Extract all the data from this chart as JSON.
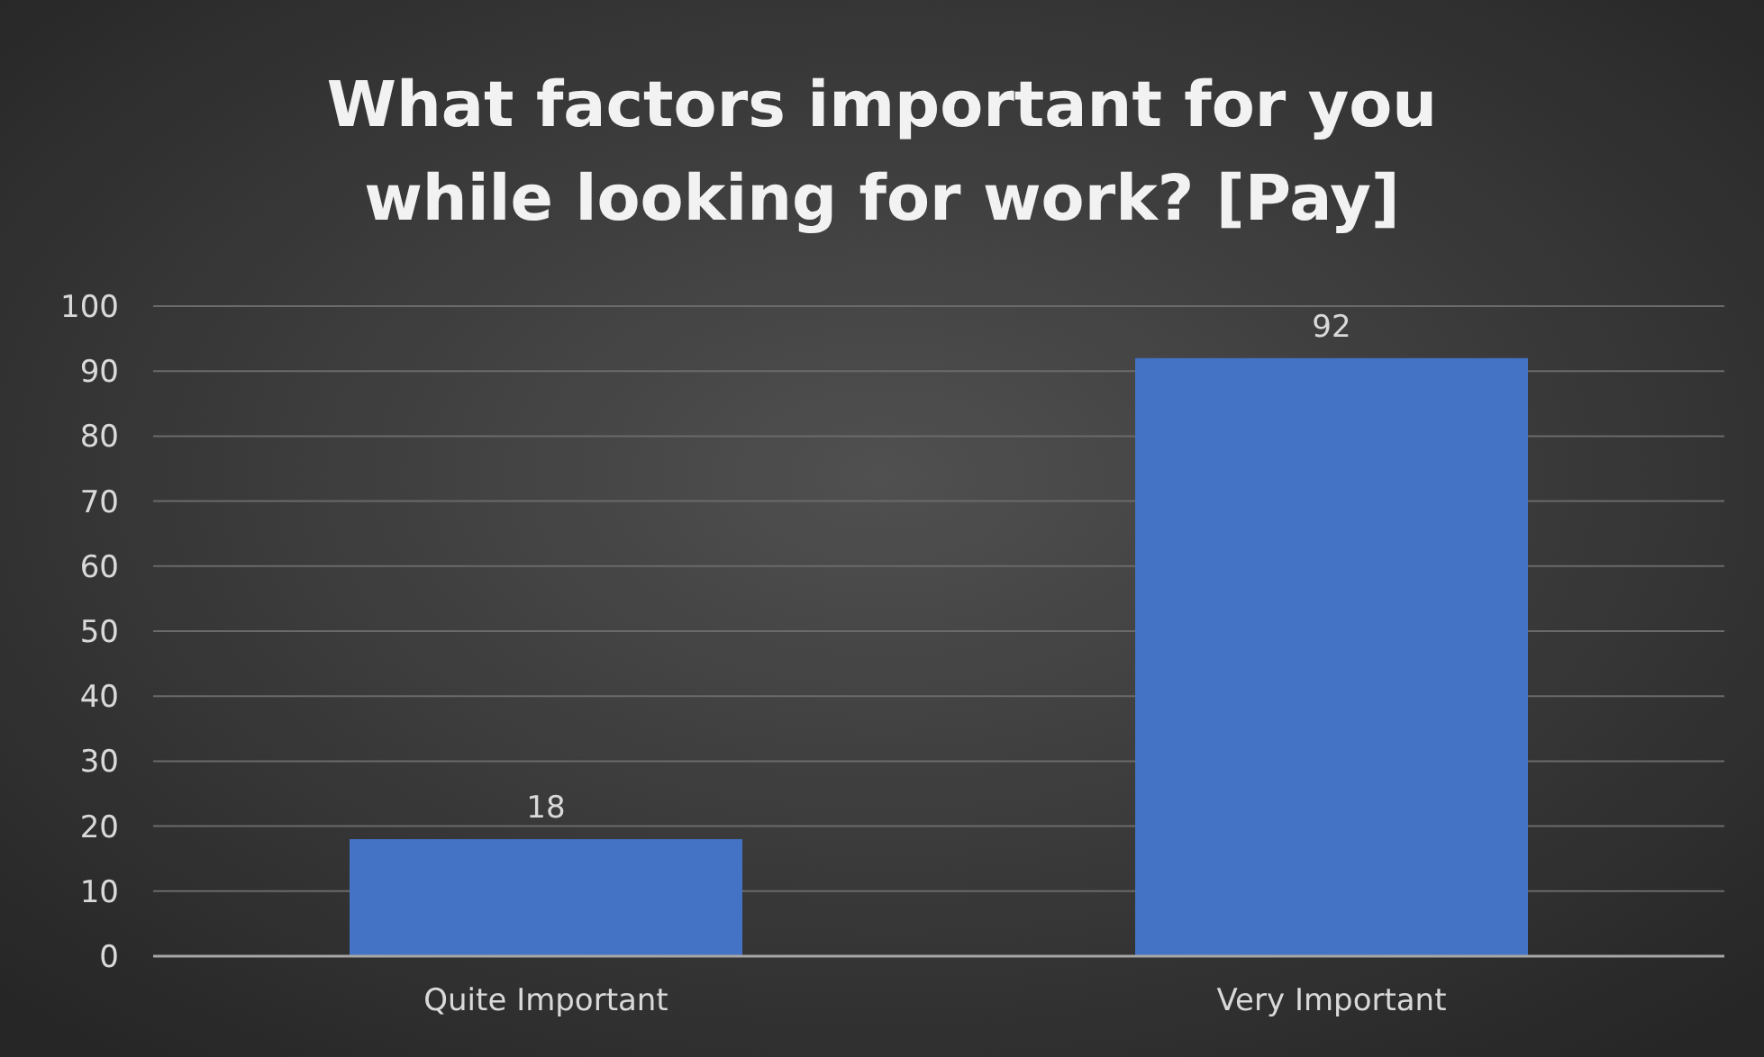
{
  "chart_data": {
    "type": "bar",
    "title": "What factors important for you while looking for work? [Pay]",
    "categories": [
      "Quite Important",
      "Very Important"
    ],
    "values": [
      18,
      92
    ],
    "color": "#4472c4",
    "ylim": [
      0,
      100
    ],
    "yticks": [
      0,
      10,
      20,
      30,
      40,
      50,
      60,
      70,
      80,
      90,
      100
    ],
    "grid": "y",
    "data_labels": true
  }
}
